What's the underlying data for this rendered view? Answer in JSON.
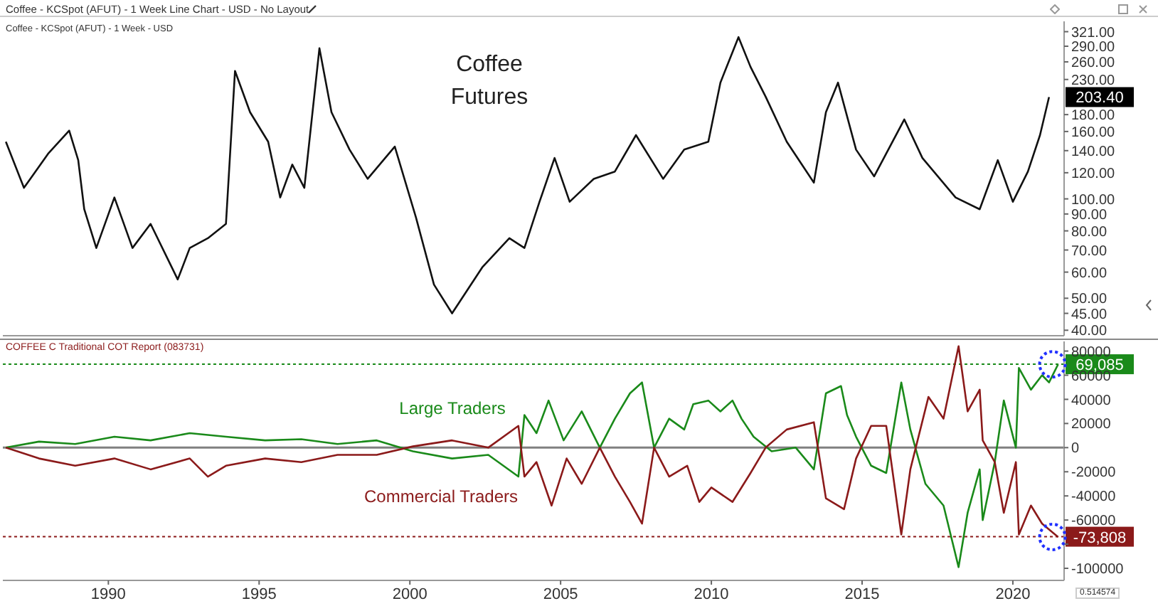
{
  "chart_data": [
    {
      "type": "line",
      "title": "Coffee Futures",
      "annotations": [
        "Coffee - KCSpot (AFUT) - 1 Week Line Chart - USD - No Layout",
        "Coffee - KCSpot (AFUT) - 1 Week - USD",
        {
          "text": "203.40",
          "x": 2021.2,
          "y": 203.4
        }
      ],
      "series": [
        {
          "color": "#111111",
          "x": [
            1986.6,
            1987.2,
            1988.0,
            1988.7,
            1989.0,
            1989.2,
            1989.6,
            1990.2,
            1990.8,
            1991.4,
            1992.3,
            1992.7,
            1993.3,
            1993.9,
            1994.2,
            1994.7,
            1995.3,
            1995.7,
            1996.1,
            1996.5,
            1997.0,
            1997.4,
            1998.0,
            1998.6,
            1999.5,
            2000.2,
            2000.8,
            2001.4,
            2002.4,
            2003.3,
            2003.8,
            2004.3,
            2004.8,
            2005.3,
            2006.1,
            2006.8,
            2007.5,
            2008.4,
            2009.1,
            2009.9,
            2010.3,
            2010.9,
            2011.3,
            2011.8,
            2012.5,
            2013.4,
            2013.8,
            2014.2,
            2014.8,
            2015.4,
            2016.4,
            2017.0,
            2018.1,
            2018.9,
            2019.5,
            2020.0,
            2020.5,
            2020.9,
            2021.2
          ],
          "values": [
            149,
            108,
            137,
            161,
            131,
            93,
            71,
            101,
            71,
            84,
            57,
            71,
            76,
            84,
            244,
            183,
            149,
            101,
            127,
            108,
            286,
            183,
            141,
            115,
            144,
            88,
            55,
            45,
            62,
            76,
            71,
            98,
            133,
            98,
            115,
            121,
            156,
            115,
            141,
            149,
            225,
            309,
            251,
            204,
            149,
            112,
            183,
            225,
            141,
            117,
            174,
            133,
            101,
            93,
            131,
            98,
            121,
            156,
            203.4
          ]
        }
      ],
      "xlim": [
        1986.5,
        2021.7
      ],
      "ylim": [
        38.5,
        345
      ],
      "log": true,
      "tick_labels": "y",
      "yticks": [
        {
          "value": 321,
          "label": "321.00"
        },
        {
          "value": 290,
          "label": "290.00"
        },
        {
          "value": 260,
          "label": "260.00"
        },
        {
          "value": 230,
          "label": "230.00"
        },
        {
          "value": 180,
          "label": "180.00"
        },
        {
          "value": 160,
          "label": "160.00"
        },
        {
          "value": 140,
          "label": "140.00"
        },
        {
          "value": 120,
          "label": "120.00"
        },
        {
          "value": 100,
          "label": "100.00"
        },
        {
          "value": 90,
          "label": "90.00"
        },
        {
          "value": 80,
          "label": "80.00"
        },
        {
          "value": 70,
          "label": "70.00"
        },
        {
          "value": 60,
          "label": "60.00"
        },
        {
          "value": 50,
          "label": "50.00"
        },
        {
          "value": 45,
          "label": "45.00"
        },
        {
          "value": 40,
          "label": "40.00"
        }
      ]
    },
    {
      "type": "line",
      "title": "COFFEE C Traditional COT Report (083731)",
      "annotations": [
        "0.514574"
      ],
      "series": [
        {
          "name": "Large Traders",
          "color": "#1a8a1a",
          "x": [
            1986.6,
            1987.7,
            1988.9,
            1990.2,
            1991.4,
            1992.7,
            1993.9,
            1995.2,
            1996.4,
            1997.6,
            1998.9,
            2000.1,
            2001.4,
            2002.6,
            2003.6,
            2003.8,
            2004.2,
            2004.6,
            2005.1,
            2005.7,
            2006.3,
            2006.8,
            2007.3,
            2007.7,
            2008.1,
            2008.6,
            2009.1,
            2009.4,
            2009.9,
            2010.3,
            2010.7,
            2011.0,
            2011.4,
            2012.0,
            2012.8,
            2013.4,
            2013.8,
            2014.3,
            2014.5,
            2014.8,
            2015.3,
            2015.8,
            2016.3,
            2016.6,
            2017.1,
            2017.7,
            2018.2,
            2018.5,
            2018.9,
            2019.0,
            2019.4,
            2019.7,
            2020.1,
            2020.2,
            2020.6,
            2020.97,
            2021.2,
            2021.5
          ],
          "values": [
            0,
            5000,
            3000,
            9000,
            6000,
            12000,
            9000,
            6000,
            7000,
            3000,
            6000,
            -3000,
            -9000,
            -6000,
            -24000,
            27000,
            12000,
            39000,
            6000,
            30000,
            0,
            24000,
            45000,
            54000,
            0,
            24000,
            15000,
            36000,
            39000,
            30000,
            39000,
            24000,
            9000,
            -3000,
            0,
            -18000,
            45000,
            51000,
            27000,
            9000,
            -15000,
            -21000,
            54000,
            15000,
            -30000,
            -48000,
            -99000,
            -54000,
            -18000,
            -60000,
            -12000,
            39000,
            0,
            66000,
            48000,
            60000,
            54000,
            69000
          ]
        },
        {
          "name": "Commercial Traders",
          "color": "#8b1a1a",
          "x": [
            1986.6,
            1987.7,
            1988.9,
            1990.2,
            1991.4,
            1992.7,
            1993.3,
            1993.9,
            1995.2,
            1996.4,
            1997.6,
            1998.9,
            2000.1,
            2001.4,
            2002.6,
            2003.6,
            2003.8,
            2004.2,
            2004.7,
            2005.2,
            2005.7,
            2006.3,
            2006.8,
            2007.3,
            2007.7,
            2008.1,
            2008.6,
            2009.2,
            2009.6,
            2010.0,
            2010.7,
            2011.3,
            2011.8,
            2012.5,
            2013.4,
            2013.8,
            2014.4,
            2014.8,
            2015.3,
            2015.8,
            2016.3,
            2016.6,
            2017.2,
            2017.7,
            2018.2,
            2018.5,
            2018.9,
            2019.0,
            2019.4,
            2019.7,
            2020.1,
            2020.2,
            2020.6,
            2020.97,
            2021.5
          ],
          "values": [
            0,
            -9000,
            -15000,
            -9000,
            -18000,
            -9000,
            -24000,
            -15000,
            -9000,
            -12000,
            -6000,
            -6000,
            1000,
            6000,
            0,
            18000,
            -24000,
            -12000,
            -48000,
            -9000,
            -30000,
            0,
            -24000,
            -45000,
            -63000,
            0,
            -24000,
            -15000,
            -45000,
            -33000,
            -45000,
            -21000,
            0,
            15000,
            21000,
            -42000,
            -51000,
            -9000,
            18000,
            18000,
            -72000,
            -18000,
            42000,
            24000,
            84000,
            30000,
            48000,
            6000,
            -12000,
            -54000,
            -12000,
            -72000,
            -48000,
            -63000,
            -74000
          ]
        }
      ],
      "xlim": [
        1986.5,
        2021.7
      ],
      "ylim": [
        -110000,
        88000
      ],
      "xticks": [
        1990,
        1995,
        2000,
        2005,
        2010,
        2015,
        2020
      ],
      "yticks": [
        80000,
        60000,
        40000,
        20000,
        0,
        -20000,
        -40000,
        -60000,
        {
          "value": -80000,
          "label": null
        },
        -100000
      ],
      "ref_lines": [
        {
          "axis": "y",
          "value": 0,
          "color": "#808080",
          "line_style": "solid"
        },
        {
          "axis": "y",
          "value": 69085,
          "label": "69,085",
          "color": "#1a8a1a",
          "line_style": "dotted"
        },
        {
          "axis": "y",
          "value": -73808,
          "label": "-73,808",
          "color": "#8b1a1a",
          "line_style": "dotted"
        }
      ]
    }
  ]
}
